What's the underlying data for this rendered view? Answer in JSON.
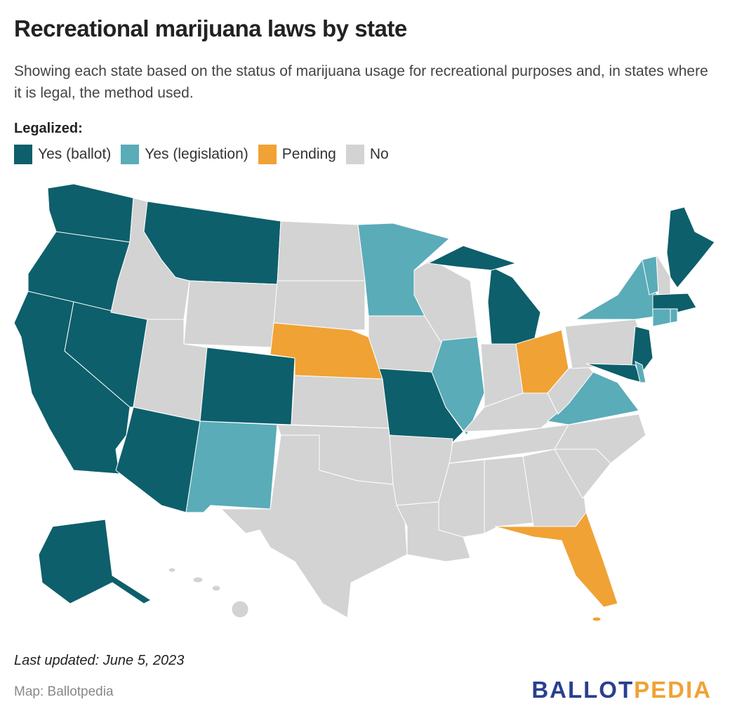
{
  "header": {
    "title": "Recreational marijuana laws by state",
    "subtitle": "Showing each state based on the status of marijuana usage for recreational purposes and, in states where it is legal, the method used."
  },
  "legend": {
    "title": "Legalized:",
    "items": [
      {
        "name": "Yes (ballot)",
        "color": "#0d5f6b"
      },
      {
        "name": "Yes (legislation)",
        "color": "#5aacb8"
      },
      {
        "name": "Pending",
        "color": "#f0a235"
      },
      {
        "name": "No",
        "color": "#d3d3d3"
      }
    ]
  },
  "footer": {
    "updated": "Last updated: June 5, 2023",
    "source": "Map: Ballotpedia",
    "logo": {
      "part1": "BALLOT",
      "part1_color": "#2b3f8f",
      "part2": "PEDIA",
      "part2_color": "#f0a235"
    }
  }
}
